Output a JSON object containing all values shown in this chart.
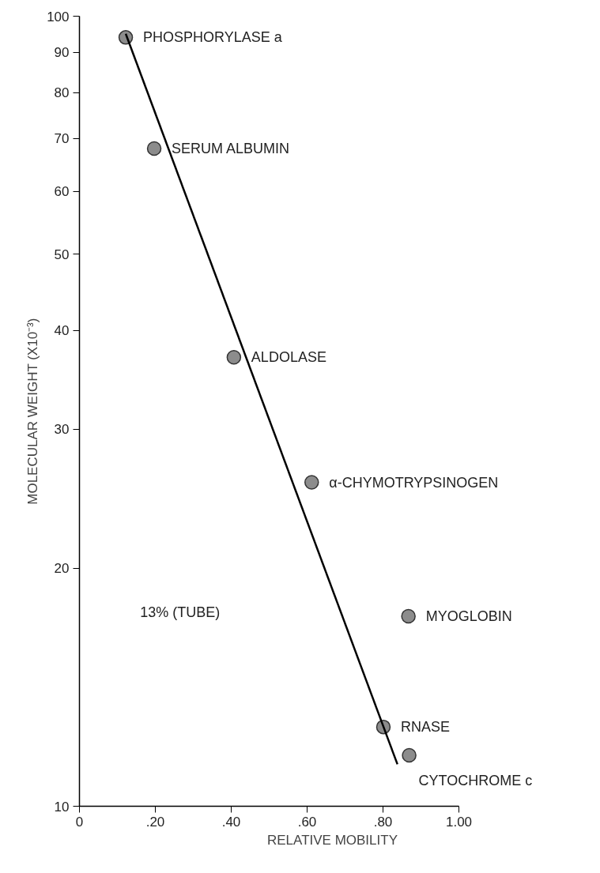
{
  "chart_data": {
    "type": "scatter",
    "xlabel": "RELATIVE MOBILITY",
    "ylabel": "MOLECULAR WEIGHT (X10⁻³)",
    "log": "y",
    "xlim": [
      0,
      1.0
    ],
    "ylim": [
      10,
      100
    ],
    "xticks": [
      {
        "value": 0,
        "label": "0"
      },
      {
        "value": 0.2,
        "label": ".20"
      },
      {
        "value": 0.4,
        "label": ".40"
      },
      {
        "value": 0.6,
        "label": ".60"
      },
      {
        "value": 0.8,
        "label": ".80"
      },
      {
        "value": 1.0,
        "label": "1.00"
      }
    ],
    "yticks": [
      10,
      20,
      30,
      40,
      50,
      60,
      70,
      80,
      90,
      100
    ],
    "grid": false,
    "series": [
      {
        "type": "scatter",
        "marker": "circle",
        "color": "#8c8c8c",
        "x": [
          0.122,
          0.197,
          0.407,
          0.612,
          0.867,
          0.801,
          0.869
        ],
        "values": [
          94,
          68,
          37,
          25.7,
          17.4,
          12.6,
          11.6
        ]
      },
      {
        "type": "line",
        "color": "#000000",
        "line_style": "solid",
        "x": [
          0.122,
          0.838
        ],
        "values": [
          95,
          11.3
        ]
      }
    ],
    "annotations": [
      {
        "text": "PHOSPHORYLASE a",
        "x": 0.122,
        "y": 94
      },
      {
        "text": "SERUM ALBUMIN",
        "x": 0.197,
        "y": 68
      },
      {
        "text": "ALDOLASE",
        "x": 0.407,
        "y": 37
      },
      {
        "text": "α-CHYMOTRYPSINOGEN",
        "x": 0.612,
        "y": 25.7
      },
      {
        "text": "MYOGLOBIN",
        "x": 0.867,
        "y": 17.4
      },
      {
        "text": "RNASE",
        "x": 0.801,
        "y": 12.6
      },
      {
        "text": "CYTOCHROME c",
        "x": 0.869,
        "y": 11.6
      },
      "13% (TUBE)"
    ]
  }
}
